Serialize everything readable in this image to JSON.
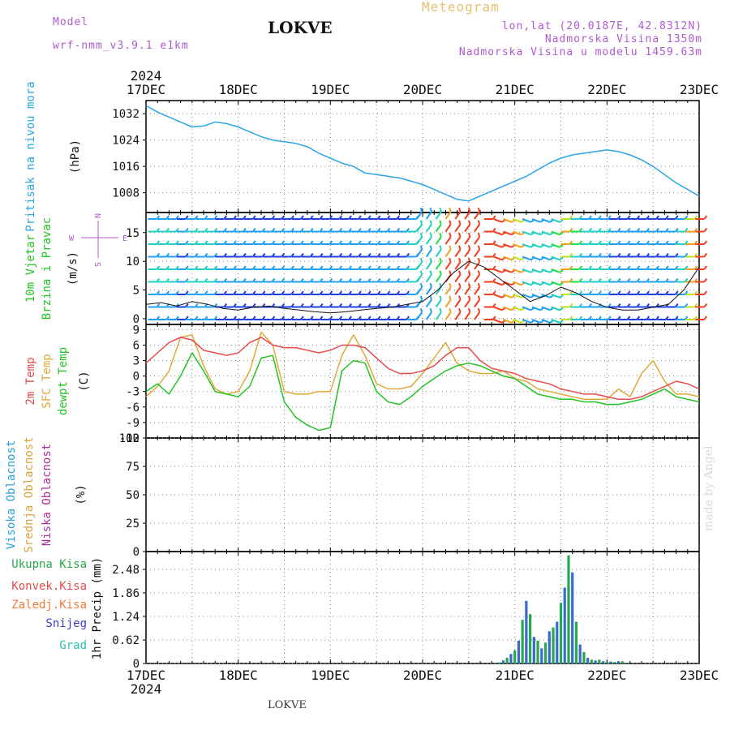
{
  "header": {
    "model_label": "Model",
    "model_name": "wrf-nmm_v3.9.1 e1km",
    "station": "LOKVE",
    "product": "Meteogram",
    "coords": "lon,lat (20.0187E, 42.8312N)",
    "elevation": "Nadmorska Visina 1350m",
    "model_elevation": "Nadmorska Visina u modelu 1459.63m",
    "footer_station": "LOKVE",
    "credit": "made by Angel"
  },
  "colors": {
    "pressure": "#29a6e3",
    "temp2m": "#e84a4a",
    "sfc": "#e0a83a",
    "dew": "#22c322",
    "high": "#2a9fe0",
    "mid": "#dba43c",
    "low": "#b0309a",
    "precip_total": "#27a84a",
    "precip_conv": "#e84a4a",
    "precip_frz": "#f47a3a",
    "snow": "#3a3ad0",
    "grad": "#26c0b0",
    "model_text": "#b05ad0",
    "product_text": "#e8c070"
  },
  "time_axis": {
    "year": "2024",
    "labels": [
      "17DEC",
      "18DEC",
      "19DEC",
      "20DEC",
      "21DEC",
      "22DEC",
      "23DEC"
    ]
  },
  "compass": {
    "n": "N",
    "s": "S",
    "e": "E",
    "w": "W"
  },
  "chart_data": [
    {
      "type": "line",
      "panel": "pressure",
      "ylabel_lines": [
        "Pritisak na nivou mora",
        "(hPa)"
      ],
      "ylim": [
        1002,
        1036
      ],
      "yticks": [
        1008,
        1016,
        1024,
        1032
      ],
      "x": [
        0,
        3,
        6,
        9,
        12,
        15,
        18,
        21,
        24,
        27,
        30,
        33,
        36,
        39,
        42,
        45,
        48,
        51,
        54,
        57,
        60,
        63,
        66,
        69,
        72,
        75,
        78,
        81,
        84,
        87,
        90,
        93,
        96,
        99,
        102,
        105,
        108,
        111,
        114,
        117,
        120,
        123,
        126,
        129,
        132,
        135,
        138,
        141,
        144
      ],
      "series": [
        {
          "name": "",
          "values": [
            1034.5,
            1032.5,
            1031.0,
            1029.5,
            1028.0,
            1028.3,
            1029.5,
            1029.0,
            1028.0,
            1026.5,
            1025.0,
            1024.0,
            1023.5,
            1023.0,
            1022.0,
            1020.0,
            1018.5,
            1017.0,
            1016.0,
            1014.0,
            1013.5,
            1013.0,
            1012.5,
            1011.5,
            1010.5,
            1009.0,
            1007.5,
            1006.0,
            1005.5,
            1007.0,
            1008.5,
            1010.0,
            1011.5,
            1013.0,
            1015.0,
            1017.0,
            1018.5,
            1019.5,
            1020.0,
            1020.5,
            1021.0,
            1020.5,
            1019.5,
            1018.0,
            1016.0,
            1013.5,
            1011.0,
            1009.0,
            1007.0
          ]
        }
      ]
    },
    {
      "type": "line",
      "panel": "wind",
      "ylabel_lines": [
        "10m Vjetar",
        "Brzina i Pravac",
        "(m/s)"
      ],
      "ylim": [
        -1,
        18.5
      ],
      "yticks": [
        0,
        5,
        10,
        15
      ],
      "x": [
        0,
        4,
        8,
        12,
        16,
        20,
        24,
        28,
        32,
        36,
        40,
        44,
        48,
        52,
        56,
        60,
        64,
        68,
        72,
        76,
        80,
        84,
        88,
        92,
        96,
        100,
        104,
        108,
        112,
        116,
        120,
        124,
        128,
        132,
        136,
        140,
        144
      ],
      "series": [
        {
          "name": "",
          "values": [
            2.5,
            2.8,
            2.2,
            3.0,
            2.5,
            1.8,
            1.5,
            2.0,
            2.2,
            1.8,
            1.5,
            1.2,
            1.0,
            1.2,
            1.5,
            1.8,
            2.0,
            2.5,
            3.0,
            5.0,
            8.0,
            10.0,
            9.0,
            7.0,
            5.0,
            3.0,
            4.0,
            5.5,
            4.5,
            3.0,
            2.0,
            1.5,
            1.5,
            2.0,
            2.5,
            5.0,
            9.0
          ]
        }
      ]
    },
    {
      "type": "line",
      "panel": "temperature",
      "ylabel_lines": [
        "2m Temp",
        "SFC Temp",
        "dewpt Temp",
        "(C)"
      ],
      "ylim": [
        -12,
        10
      ],
      "yticks": [
        -12,
        -9,
        -6,
        -3,
        0,
        3,
        6,
        9
      ],
      "x": [
        0,
        3,
        6,
        9,
        12,
        15,
        18,
        21,
        24,
        27,
        30,
        33,
        36,
        39,
        42,
        45,
        48,
        51,
        54,
        57,
        60,
        63,
        66,
        69,
        72,
        75,
        78,
        81,
        84,
        87,
        90,
        93,
        96,
        99,
        102,
        105,
        108,
        111,
        114,
        117,
        120,
        123,
        126,
        129,
        132,
        135,
        138,
        141,
        144
      ],
      "series": [
        {
          "name": "2m Temp",
          "values": [
            2.5,
            4.5,
            6.5,
            7.5,
            7.0,
            5.0,
            4.5,
            4.0,
            4.5,
            6.5,
            7.5,
            6.0,
            5.5,
            5.5,
            5.0,
            4.5,
            5.0,
            6.0,
            6.0,
            5.5,
            3.5,
            1.5,
            0.5,
            0.5,
            1.0,
            2.0,
            4.0,
            5.5,
            5.5,
            3.0,
            1.5,
            1.0,
            0.5,
            -0.5,
            -1.0,
            -1.5,
            -2.5,
            -3.0,
            -3.5,
            -3.5,
            -4.0,
            -4.5,
            -4.5,
            -4.0,
            -3.0,
            -2.0,
            -1.0,
            -1.5,
            -2.5
          ]
        },
        {
          "name": "SFC Temp",
          "values": [
            -4.0,
            -2.0,
            1.0,
            7.5,
            8.0,
            2.0,
            -2.5,
            -3.5,
            -3.0,
            1.0,
            8.5,
            6.0,
            -3.0,
            -3.5,
            -3.5,
            -3.0,
            -3.0,
            4.0,
            8.0,
            4.0,
            -1.5,
            -2.5,
            -2.5,
            -2.0,
            0.5,
            3.5,
            6.5,
            2.5,
            1.0,
            0.5,
            0.5,
            1.0,
            -0.5,
            -1.0,
            -2.5,
            -3.0,
            -3.5,
            -4.0,
            -4.5,
            -4.5,
            -4.5,
            -2.5,
            -4.0,
            0.5,
            3.0,
            -1.0,
            -3.5,
            -3.5,
            -4.0
          ]
        },
        {
          "name": "dewpt Temp",
          "values": [
            -3.0,
            -1.5,
            -3.5,
            0.0,
            4.5,
            1.0,
            -3.0,
            -3.5,
            -4.0,
            -2.0,
            3.5,
            4.0,
            -5.0,
            -8.0,
            -9.5,
            -10.5,
            -10.0,
            1.0,
            3.0,
            2.5,
            -3.0,
            -5.0,
            -5.5,
            -4.0,
            -2.0,
            -0.5,
            1.0,
            2.0,
            2.5,
            2.0,
            1.0,
            0.0,
            -0.5,
            -2.0,
            -3.5,
            -4.0,
            -4.5,
            -4.5,
            -5.0,
            -5.0,
            -5.5,
            -5.5,
            -5.0,
            -4.5,
            -3.5,
            -2.5,
            -4.0,
            -4.5,
            -5.0
          ]
        }
      ]
    },
    {
      "type": "bar",
      "panel": "cloud",
      "ylabel_lines": [
        "Visoka Oblacnost",
        "Srednja Oblacnost",
        "Niska Oblacnost",
        "(%)"
      ],
      "ylim": [
        0,
        100
      ],
      "yticks": [
        0,
        25,
        50,
        75,
        100
      ],
      "x": [
        0,
        3,
        6,
        9,
        12,
        15,
        18,
        21,
        24,
        27,
        30,
        33,
        36,
        39,
        42,
        45,
        48,
        51,
        54,
        57,
        60,
        63,
        66,
        69,
        72,
        75,
        78,
        81,
        84,
        87,
        90,
        93,
        96,
        99,
        102,
        105,
        108,
        111,
        114,
        117,
        120,
        123,
        126,
        129,
        132,
        135,
        138,
        141,
        144
      ],
      "series": [
        {
          "name": "Visoka Oblacnost",
          "values": [
            0,
            0,
            0,
            0,
            0,
            0,
            0,
            0,
            0,
            0,
            0,
            0,
            0,
            0,
            0,
            0,
            0,
            0,
            0,
            0,
            0,
            0,
            0,
            0,
            0,
            0,
            0,
            0,
            0,
            0,
            0,
            0,
            0,
            0,
            0,
            0,
            0,
            0,
            0,
            0,
            0,
            0,
            0,
            0,
            0,
            0,
            0,
            0,
            0
          ]
        },
        {
          "name": "Srednja Oblacnost",
          "values": [
            0,
            0,
            0,
            0,
            0,
            0,
            0,
            0,
            0,
            0,
            0,
            0,
            0,
            0,
            0,
            0,
            0,
            0,
            0,
            0,
            0,
            0,
            0,
            0,
            0,
            0,
            0,
            0,
            0,
            0,
            0,
            0,
            0,
            0,
            0,
            0,
            0,
            0,
            0,
            0,
            0,
            0,
            0,
            0,
            0,
            0,
            0,
            0,
            0
          ]
        },
        {
          "name": "Niska Oblacnost",
          "values": [
            0,
            0,
            0,
            0,
            0,
            0,
            0,
            0,
            0,
            0,
            0,
            0,
            0,
            0,
            0,
            0,
            0,
            0,
            0,
            0,
            0,
            0,
            0,
            0,
            0,
            0,
            0,
            0,
            0,
            0,
            0,
            0,
            0,
            0,
            0,
            0,
            0,
            0,
            0,
            0,
            0,
            0,
            0,
            0,
            0,
            0,
            0,
            0,
            0
          ]
        }
      ]
    },
    {
      "type": "bar",
      "panel": "precip",
      "ylabel_lines": [
        "1hr Precip (mm)"
      ],
      "legend": [
        "Ukupna Kisa",
        "Konvek.Kisa",
        "Zaledj.Kisa",
        "Snijeg",
        "Grad"
      ],
      "ylim": [
        0,
        2.95
      ],
      "yticks": [
        0,
        0.62,
        1.24,
        1.86,
        2.48
      ],
      "x": [
        92,
        93,
        94,
        95,
        96,
        97,
        98,
        99,
        100,
        101,
        102,
        103,
        104,
        105,
        106,
        107,
        108,
        109,
        110,
        111,
        112,
        113,
        114,
        115,
        116,
        117,
        118,
        119,
        120,
        121,
        122,
        123,
        124,
        125
      ],
      "series": [
        {
          "name": "Ukupna Kisa",
          "values": [
            0.03,
            0.08,
            0.15,
            0.25,
            0.35,
            0.6,
            1.15,
            1.65,
            1.3,
            0.7,
            0.6,
            0.4,
            0.55,
            0.85,
            0.95,
            1.1,
            1.6,
            2.0,
            2.85,
            2.4,
            1.1,
            0.5,
            0.3,
            0.15,
            0.1,
            0.08,
            0.1,
            0.06,
            0.05,
            0.05,
            0.04,
            0.05,
            0.06,
            0.02
          ]
        }
      ]
    }
  ]
}
